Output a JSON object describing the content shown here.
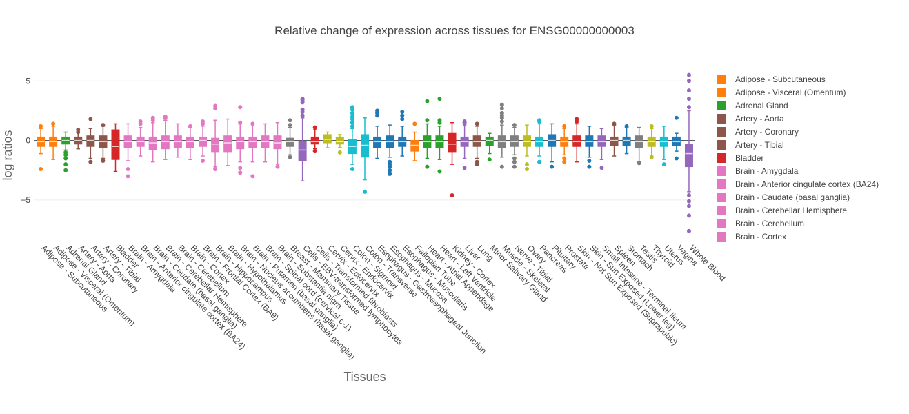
{
  "chart_data": {
    "type": "box",
    "title": "Relative change of expression across tissues for ENSG00000000003",
    "xlabel": "Tissues",
    "ylabel": "log ratios",
    "ylim": [
      -7.9,
      6.0
    ],
    "yticks": [
      5,
      0,
      -5
    ],
    "ytick_labels": [
      "5",
      "0",
      "−5"
    ],
    "grid": true,
    "legend_position": "right",
    "categories": [
      "Adipose - Subcutaneous",
      "Adipose - Visceral (Omentum)",
      "Adrenal Gland",
      "Artery - Aorta",
      "Artery - Coronary",
      "Artery - Tibial",
      "Bladder",
      "Brain - Amygdala",
      "Brain - Anterior cingulate cortex (BA24)",
      "Brain - Caudate (basal ganglia)",
      "Brain - Cerebellar Hemisphere",
      "Brain - Cerebellum",
      "Brain - Cortex",
      "Brain - Frontal Cortex (BA9)",
      "Brain - Hippocampus",
      "Brain - Hypothalamus",
      "Brain - Nucleus accumbens (basal ganglia)",
      "Brain - Putamen (basal ganglia)",
      "Brain - Spinal cord (cervical c-1)",
      "Brain - Substantia nigra",
      "Breast - Mammary Tissue",
      "Cells - EBV-transformed lymphocytes",
      "Cells - Transformed fibroblasts",
      "Cervix - Ectocervix",
      "Cervix - Endocervix",
      "Colon - Sigmoid",
      "Colon - Transverse",
      "Esophagus - Gastroesophageal Junction",
      "Esophagus - Mucosa",
      "Esophagus - Muscularis",
      "Fallopian Tube",
      "Heart - Atrial Appendage",
      "Heart - Left Ventricle",
      "Kidney - Cortex",
      "Liver",
      "Lung",
      "Minor Salivary Gland",
      "Muscle - Skeletal",
      "Nerve - Tibial",
      "Ovary",
      "Pancreas",
      "Pituitary",
      "Prostate",
      "Skin - Not Sun Exposed (Suprapubic)",
      "Skin - Sun Exposed (Lower leg)",
      "Small Intestine - Terminal Ileum",
      "Spleen",
      "Stomach",
      "Testis",
      "Thyroid",
      "Uterus",
      "Vagina",
      "Whole Blood"
    ],
    "colors": [
      "#ff7f0e",
      "#ff7f0e",
      "#2ca02c",
      "#8c564b",
      "#8c564b",
      "#8c564b",
      "#d62728",
      "#e377c2",
      "#e377c2",
      "#e377c2",
      "#e377c2",
      "#e377c2",
      "#e377c2",
      "#e377c2",
      "#e377c2",
      "#e377c2",
      "#e377c2",
      "#e377c2",
      "#e377c2",
      "#e377c2",
      "#7f7f7f",
      "#9467bd",
      "#d62728",
      "#bcbd22",
      "#bcbd22",
      "#17becf",
      "#17becf",
      "#1f77b4",
      "#1f77b4",
      "#1f77b4",
      "#ff7f0e",
      "#2ca02c",
      "#2ca02c",
      "#d62728",
      "#9467bd",
      "#8c564b",
      "#2ca02c",
      "#7f7f7f",
      "#7f7f7f",
      "#bcbd22",
      "#17becf",
      "#1f77b4",
      "#ff7f0e",
      "#d62728",
      "#1f77b4",
      "#9467bd",
      "#8c564b",
      "#1f77b4",
      "#7f7f7f",
      "#bcbd22",
      "#17becf",
      "#1f77b4",
      "#9467bd"
    ],
    "boxes": [
      {
        "q1": -0.5,
        "median": -0.1,
        "q3": 0.3,
        "lower": -1.1,
        "upper": 1.0,
        "outliers": [
          1.2,
          -2.4
        ]
      },
      {
        "q1": -0.5,
        "median": -0.1,
        "q3": 0.3,
        "lower": -1.6,
        "upper": 1.2,
        "outliers": [
          1.4
        ]
      },
      {
        "q1": -0.3,
        "median": 0.0,
        "q3": 0.3,
        "lower": -0.8,
        "upper": 0.7,
        "outliers": [
          -1.0,
          -1.2,
          -1.5,
          -2.0,
          -2.5
        ]
      },
      {
        "q1": -0.3,
        "median": 0.0,
        "q3": 0.3,
        "lower": -0.7,
        "upper": 0.9,
        "outliers": [
          0.7,
          0.9
        ]
      },
      {
        "q1": -0.5,
        "median": 0.0,
        "q3": 0.4,
        "lower": -1.5,
        "upper": 1.0,
        "outliers": [
          -1.8,
          1.8
        ]
      },
      {
        "q1": -0.6,
        "median": -0.1,
        "q3": 0.4,
        "lower": -1.5,
        "upper": 1.2,
        "outliers": [
          -1.7,
          1.3
        ]
      },
      {
        "q1": -1.6,
        "median": -0.5,
        "q3": 0.9,
        "lower": -2.6,
        "upper": 1.4,
        "outliers": []
      },
      {
        "q1": -0.6,
        "median": -0.1,
        "q3": 0.4,
        "lower": -1.7,
        "upper": 1.4,
        "outliers": [
          -2.4,
          -3.0
        ]
      },
      {
        "q1": -0.5,
        "median": -0.1,
        "q3": 0.3,
        "lower": -1.3,
        "upper": 1.1,
        "outliers": [
          1.4,
          1.6
        ]
      },
      {
        "q1": -0.8,
        "median": -0.2,
        "q3": 0.3,
        "lower": -1.8,
        "upper": 1.5,
        "outliers": [
          1.7,
          1.9
        ]
      },
      {
        "q1": -0.7,
        "median": -0.1,
        "q3": 0.4,
        "lower": -1.6,
        "upper": 1.7,
        "outliers": [
          1.9,
          2.0
        ]
      },
      {
        "q1": -0.6,
        "median": -0.1,
        "q3": 0.4,
        "lower": -1.4,
        "upper": 1.4,
        "outliers": []
      },
      {
        "q1": -0.6,
        "median": -0.1,
        "q3": 0.3,
        "lower": -1.6,
        "upper": 1.1,
        "outliers": [
          1.2
        ]
      },
      {
        "q1": -0.5,
        "median": 0.0,
        "q3": 0.3,
        "lower": -1.3,
        "upper": 1.2,
        "outliers": [
          -1.7,
          1.4,
          1.6
        ]
      },
      {
        "q1": -1.0,
        "median": -0.3,
        "q3": 0.2,
        "lower": -2.2,
        "upper": 1.7,
        "outliers": [
          -2.4,
          2.7,
          2.9
        ]
      },
      {
        "q1": -1.0,
        "median": -0.2,
        "q3": 0.4,
        "lower": -2.1,
        "upper": 1.8,
        "outliers": []
      },
      {
        "q1": -0.7,
        "median": -0.1,
        "q3": 0.3,
        "lower": -1.8,
        "upper": 1.4,
        "outliers": [
          -2.3,
          -2.7,
          1.5,
          2.8
        ]
      },
      {
        "q1": -0.6,
        "median": -0.1,
        "q3": 0.3,
        "lower": -1.8,
        "upper": 1.4,
        "outliers": [
          -3.0,
          1.4
        ]
      },
      {
        "q1": -0.6,
        "median": -0.1,
        "q3": 0.4,
        "lower": -1.8,
        "upper": 1.4,
        "outliers": []
      },
      {
        "q1": -0.7,
        "median": -0.2,
        "q3": 0.4,
        "lower": -2.0,
        "upper": 1.5,
        "outliers": [
          -2.2
        ]
      },
      {
        "q1": -0.5,
        "median": -0.1,
        "q3": 0.2,
        "lower": -1.2,
        "upper": 1.1,
        "outliers": [
          1.3,
          1.7,
          -1.4
        ]
      },
      {
        "q1": -1.7,
        "median": -0.8,
        "q3": -0.1,
        "lower": -3.4,
        "upper": 1.9,
        "outliers": [
          2.1,
          2.4,
          2.6,
          3.2,
          3.4,
          3.5
        ]
      },
      {
        "q1": -0.3,
        "median": -0.1,
        "q3": 0.3,
        "lower": -0.7,
        "upper": 0.9,
        "outliers": [
          1.1,
          -0.9
        ]
      },
      {
        "q1": -0.2,
        "median": 0.1,
        "q3": 0.5,
        "lower": -0.6,
        "upper": 0.7,
        "outliers": []
      },
      {
        "q1": -0.3,
        "median": -0.1,
        "q3": 0.3,
        "lower": -0.6,
        "upper": 0.5,
        "outliers": [
          -1.0
        ]
      },
      {
        "q1": -1.1,
        "median": -0.5,
        "q3": 0.1,
        "lower": -2.0,
        "upper": 1.0,
        "outliers": [
          1.2,
          1.5,
          1.8,
          2.0,
          2.3,
          2.6,
          2.8,
          -2.4
        ]
      },
      {
        "q1": -1.4,
        "median": -0.4,
        "q3": 0.5,
        "lower": -3.3,
        "upper": 1.9,
        "outliers": [
          -4.3
        ]
      },
      {
        "q1": -0.6,
        "median": -0.1,
        "q3": 0.3,
        "lower": -1.5,
        "upper": 1.2,
        "outliers": [
          2.1,
          2.3,
          2.5
        ]
      },
      {
        "q1": -0.6,
        "median": -0.1,
        "q3": 0.4,
        "lower": -1.4,
        "upper": 1.3,
        "outliers": [
          -1.8,
          -2.0,
          -2.2,
          -2.5,
          -2.8
        ]
      },
      {
        "q1": -0.5,
        "median": -0.1,
        "q3": 0.3,
        "lower": -1.3,
        "upper": 1.2,
        "outliers": [
          1.8,
          2.1,
          2.4
        ]
      },
      {
        "q1": -0.9,
        "median": -0.4,
        "q3": 0.0,
        "lower": -1.7,
        "upper": 0.7,
        "outliers": [
          1.4
        ]
      },
      {
        "q1": -0.6,
        "median": -0.1,
        "q3": 0.4,
        "lower": -1.5,
        "upper": 1.4,
        "outliers": [
          -2.2,
          1.7,
          3.3
        ]
      },
      {
        "q1": -0.6,
        "median": -0.1,
        "q3": 0.4,
        "lower": -1.6,
        "upper": 1.2,
        "outliers": [
          -2.6,
          1.5,
          1.7,
          3.5
        ]
      },
      {
        "q1": -1.0,
        "median": -0.3,
        "q3": 0.6,
        "lower": -2.0,
        "upper": 1.5,
        "outliers": [
          -4.6
        ]
      },
      {
        "q1": -0.5,
        "median": -0.1,
        "q3": 0.3,
        "lower": -1.5,
        "upper": 1.3,
        "outliers": [
          -2.3,
          1.5,
          1.6
        ]
      },
      {
        "q1": -0.5,
        "median": -0.1,
        "q3": 0.4,
        "lower": -1.5,
        "upper": 1.2,
        "outliers": [
          -1.8,
          -2.0,
          1.4
        ]
      },
      {
        "q1": -0.4,
        "median": 0.0,
        "q3": 0.3,
        "lower": -1.1,
        "upper": 0.6,
        "outliers": [
          -1.6
        ]
      },
      {
        "q1": -0.6,
        "median": -0.1,
        "q3": 0.4,
        "lower": -1.4,
        "upper": 1.3,
        "outliers": [
          -2.2,
          1.6,
          1.9,
          2.1,
          2.3,
          2.7,
          3.0
        ]
      },
      {
        "q1": -0.5,
        "median": -0.1,
        "q3": 0.4,
        "lower": -1.2,
        "upper": 1.1,
        "outliers": [
          -1.5,
          -1.8,
          -2.2,
          1.3
        ]
      },
      {
        "q1": -0.5,
        "median": -0.1,
        "q3": 0.4,
        "lower": -1.3,
        "upper": 1.3,
        "outliers": [
          -2.0,
          -2.4
        ]
      },
      {
        "q1": -0.5,
        "median": -0.1,
        "q3": 0.3,
        "lower": -1.3,
        "upper": 1.4,
        "outliers": [
          -1.8,
          1.6,
          1.7
        ]
      },
      {
        "q1": -0.5,
        "median": 0.0,
        "q3": 0.5,
        "lower": -1.8,
        "upper": 1.4,
        "outliers": [
          -2.2
        ]
      },
      {
        "q1": -0.5,
        "median": -0.1,
        "q3": 0.3,
        "lower": -1.2,
        "upper": 1.0,
        "outliers": [
          -1.5,
          -1.8,
          1.2
        ]
      },
      {
        "q1": -0.5,
        "median": -0.1,
        "q3": 0.4,
        "lower": -1.8,
        "upper": 1.4,
        "outliers": [
          1.6,
          1.8
        ]
      },
      {
        "q1": -0.5,
        "median": -0.1,
        "q3": 0.4,
        "lower": -1.4,
        "upper": 1.2,
        "outliers": [
          -2.2,
          -1.7
        ]
      },
      {
        "q1": -0.5,
        "median": -0.1,
        "q3": 0.4,
        "lower": -1.6,
        "upper": 1.0,
        "outliers": [
          -2.3
        ]
      },
      {
        "q1": -0.4,
        "median": 0.0,
        "q3": 0.3,
        "lower": -1.3,
        "upper": 1.3,
        "outliers": [
          1.4
        ]
      },
      {
        "q1": -0.4,
        "median": 0.0,
        "q3": 0.3,
        "lower": -1.1,
        "upper": 1.1,
        "outliers": [
          1.2
        ]
      },
      {
        "q1": -0.6,
        "median": -0.1,
        "q3": 0.4,
        "lower": -1.8,
        "upper": 1.1,
        "outliers": [
          -1.9
        ]
      },
      {
        "q1": -0.5,
        "median": -0.1,
        "q3": 0.3,
        "lower": -1.3,
        "upper": 1.0,
        "outliers": [
          1.2,
          -1.4
        ]
      },
      {
        "q1": -0.5,
        "median": -0.1,
        "q3": 0.3,
        "lower": -1.6,
        "upper": 1.2,
        "outliers": [
          -2.0
        ]
      },
      {
        "q1": -0.4,
        "median": -0.1,
        "q3": 0.3,
        "lower": -0.9,
        "upper": 0.6,
        "outliers": [
          1.9,
          -1.5
        ]
      },
      {
        "q1": -2.2,
        "median": -1.1,
        "q3": -0.3,
        "lower": -4.3,
        "upper": 2.5,
        "outliers": [
          2.8,
          3.5,
          4.2,
          5.0,
          5.5,
          -4.6,
          -5.1,
          -5.5,
          -6.3,
          -7.6
        ]
      }
    ],
    "legend_entries": [
      {
        "name": "Adipose - Subcutaneous",
        "color": "#ff7f0e"
      },
      {
        "name": "Adipose - Visceral (Omentum)",
        "color": "#ff7f0e"
      },
      {
        "name": "Adrenal Gland",
        "color": "#2ca02c"
      },
      {
        "name": "Artery - Aorta",
        "color": "#8c564b"
      },
      {
        "name": "Artery - Coronary",
        "color": "#8c564b"
      },
      {
        "name": "Artery - Tibial",
        "color": "#8c564b"
      },
      {
        "name": "Bladder",
        "color": "#d62728"
      },
      {
        "name": "Brain - Amygdala",
        "color": "#e377c2"
      },
      {
        "name": "Brain - Anterior cingulate cortex (BA24)",
        "color": "#e377c2"
      },
      {
        "name": "Brain - Caudate (basal ganglia)",
        "color": "#e377c2"
      },
      {
        "name": "Brain - Cerebellar Hemisphere",
        "color": "#e377c2"
      },
      {
        "name": "Brain - Cerebellum",
        "color": "#e377c2"
      },
      {
        "name": "Brain - Cortex",
        "color": "#e377c2"
      }
    ]
  }
}
